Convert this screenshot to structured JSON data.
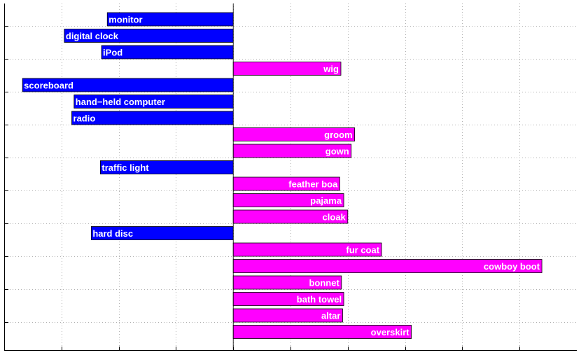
{
  "chart_data": {
    "type": "bar",
    "orientation": "horizontal",
    "title": "",
    "xlabel": "",
    "ylabel": "",
    "xlim": [
      -4,
      6
    ],
    "grid": true,
    "colors": {
      "negative": "#0000ff",
      "positive": "#ff00ff",
      "background": "#ffffff",
      "grid": "#b0b0b0",
      "axis": "#000000"
    },
    "categories": [
      "monitor",
      "digital clock",
      "iPod",
      "wig",
      "scoreboard",
      "hand−held computer",
      "radio",
      "groom",
      "gown",
      "traffic light",
      "feather boa",
      "pajama",
      "cloak",
      "hard disc",
      "fur coat",
      "cowboy boot",
      "bonnet",
      "bath towel",
      "altar",
      "overskirt"
    ],
    "values": [
      -2.2,
      -2.95,
      -2.3,
      1.88,
      -3.68,
      -2.78,
      -2.82,
      2.12,
      2.06,
      -2.32,
      1.86,
      1.93,
      2.0,
      -2.48,
      2.59,
      5.39,
      1.89,
      1.93,
      1.91,
      3.11
    ]
  }
}
